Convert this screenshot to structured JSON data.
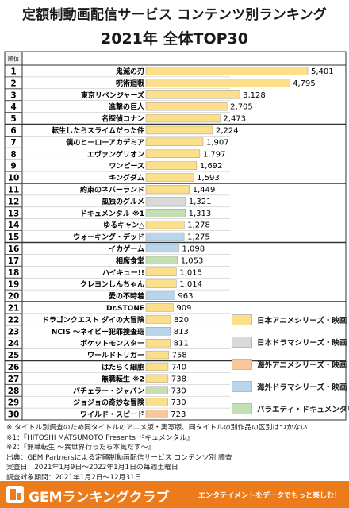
{
  "header": {
    "title_line1": "定額制動画配信サービス コンテンツ別ランキング",
    "title_line2": "2021年 全体TOP30"
  },
  "chart_data": {
    "type": "bar",
    "orientation": "horizontal",
    "rank_header": "順位",
    "ranks": [
      1,
      2,
      3,
      4,
      5,
      6,
      7,
      8,
      9,
      10,
      11,
      12,
      13,
      14,
      15,
      16,
      17,
      18,
      19,
      20,
      21,
      22,
      23,
      24,
      25,
      26,
      27,
      28,
      29,
      30
    ],
    "categories": [
      "鬼滅の刃",
      "呪術廻戦",
      "東京リベンジャーズ",
      "進撃の巨人",
      "名探偵コナン",
      "転生したらスライムだった件",
      "僕のヒーローアカデミア",
      "エヴァンゲリオン",
      "ワンピース",
      "キングダム",
      "約束のネバーランド",
      "孤独のグルメ",
      "ドキュメンタル ※1",
      "ゆるキャン△",
      "ウォーキング・デッド",
      "イカゲーム",
      "相席食堂",
      "ハイキュー!!",
      "クレヨンしんちゃん",
      "愛の不時着",
      "Dr.STONE",
      "ドラゴンクエスト ダイの大冒険",
      "NCIS ～ネイビー犯罪捜査班",
      "ポケットモンスター",
      "ワールドトリガー",
      "はたらく細胞",
      "無職転生 ※2",
      "バチェラー・ジャパン",
      "ジョジョの奇妙な冒険",
      "ワイルド・スピード"
    ],
    "values": [
      5401,
      4795,
      3128,
      2705,
      2473,
      2224,
      1907,
      1797,
      1692,
      1593,
      1449,
      1321,
      1313,
      1278,
      1275,
      1098,
      1053,
      1015,
      1014,
      963,
      909,
      820,
      813,
      811,
      758,
      740,
      738,
      730,
      730,
      723
    ],
    "value_labels": [
      "5,401",
      "4,795",
      "3,128",
      "2,705",
      "2,473",
      "2,224",
      "1,907",
      "1,797",
      "1,692",
      "1,593",
      "1,449",
      "1,321",
      "1,313",
      "1,278",
      "1,275",
      "1,098",
      "1,053",
      "1,015",
      "1,014",
      "963",
      "909",
      "820",
      "813",
      "811",
      "758",
      "740",
      "738",
      "730",
      "730",
      "723"
    ],
    "genres": [
      "anime_jp",
      "anime_jp",
      "anime_jp",
      "anime_jp",
      "anime_jp",
      "anime_jp",
      "anime_jp",
      "anime_jp",
      "anime_jp",
      "anime_jp",
      "anime_jp",
      "drama_jp",
      "variety",
      "anime_jp",
      "drama_foreign",
      "drama_foreign",
      "variety",
      "anime_jp",
      "anime_jp",
      "drama_foreign",
      "anime_jp",
      "anime_jp",
      "drama_foreign",
      "anime_jp",
      "anime_jp",
      "anime_jp",
      "anime_jp",
      "variety",
      "anime_jp",
      "anime_foreign"
    ],
    "legend": [
      {
        "key": "anime_jp",
        "label": "日本アニメシリーズ・映画",
        "color": "#fcdf8a"
      },
      {
        "key": "drama_jp",
        "label": "日本ドラマシリーズ・映画",
        "color": "#d9d9d9"
      },
      {
        "key": "anime_foreign",
        "label": "海外アニメシリーズ・映画",
        "color": "#f9c79a"
      },
      {
        "key": "drama_foreign",
        "label": "海外ドラマシリーズ・映画",
        "color": "#b9d5ec"
      },
      {
        "key": "variety",
        "label": "バラエティ・ドキュメンタリー",
        "color": "#c5dfb5"
      }
    ],
    "legend_position": "bottom-right",
    "xlim": [
      0,
      5401
    ]
  },
  "notes": [
    "※ タイトル別調査のため同タイトルのアニメ版・実写版、同タイトルの別作品の区別はつかない",
    "※1：『HITOSHI MATSUMOTO Presents ドキュメンタル』",
    "※2：『無職転生 ～異世界行ったら本気だす～』",
    "出典：GEM Partnersによる定額制動画配信サービス コンテンツ別 調査",
    "実査日：2021年1月9日～2022年1月1日の毎週土曜日",
    "調査対象期間：2021年1月2日～12月31日"
  ],
  "footer": {
    "brand": "GEMランキングクラブ",
    "tagline": "エンタテイメントをデータでもっと楽しむ！"
  }
}
